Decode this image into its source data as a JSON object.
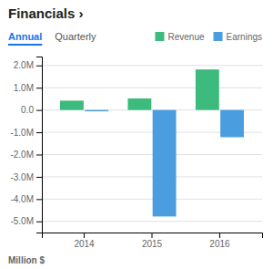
{
  "chart_data": {
    "type": "bar",
    "title": "Financials ›",
    "annotations": [
      "Annual",
      "Quarterly"
    ],
    "xlabel": "Million $",
    "categories": [
      "2014",
      "2015",
      "2016"
    ],
    "series": [
      {
        "name": "Revenue",
        "color": "#3dba7e",
        "values": [
          0.42,
          0.52,
          1.82
        ]
      },
      {
        "name": "Earnings",
        "color": "#4a9ee0",
        "values": [
          -0.06,
          -4.78,
          -1.22
        ]
      }
    ],
    "ylim": [
      -5.5,
      2.4
    ],
    "yticks": [
      {
        "value": -5.0,
        "label": "-5.0M"
      },
      {
        "value": -4.0,
        "label": "-4.0M"
      },
      {
        "value": -3.0,
        "label": "-3.0M"
      },
      {
        "value": -2.0,
        "label": "-2.0M"
      },
      {
        "value": -1.0,
        "label": "-1.0M"
      },
      {
        "value": 0.0,
        "label": "0.0"
      },
      {
        "value": 1.0,
        "label": "1.0M"
      },
      {
        "value": 2.0,
        "label": "2.0M"
      }
    ],
    "grid": true,
    "legend": "top-right"
  }
}
